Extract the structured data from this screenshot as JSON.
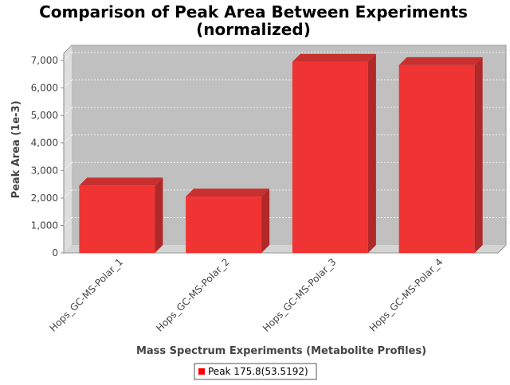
{
  "chart_data": {
    "type": "bar",
    "title": "Comparison of Peak Area Between Experiments",
    "subtitle": "(normalized)",
    "xlabel": "Mass Spectrum Experiments (Metabolite Profiles)",
    "ylabel": "Peak Area (1e-3)",
    "categories": [
      "Hops_GC-MS-Polar_1",
      "Hops_GC-MS-Polar_2",
      "Hops_GC-MS-Polar_3",
      "Hops_GC-MS-Polar_4"
    ],
    "series": [
      {
        "name": "Peak 175.8(53.5192)",
        "values": [
          2450,
          2050,
          6950,
          6830
        ]
      }
    ],
    "ylim": [
      0,
      7000
    ],
    "yticks": [
      0,
      1000,
      2000,
      3000,
      4000,
      5000,
      6000,
      7000
    ],
    "ytick_labels": [
      "0",
      "1,000",
      "2,000",
      "3,000",
      "4,000",
      "5,000",
      "6,000",
      "7,000"
    ],
    "grid": true,
    "legend_position": "bottom-center",
    "colors": {
      "bar": "#f03333",
      "bar_side": "#b02828",
      "bar_top": "#c83030",
      "plot_bg": "#c0c0c0",
      "wall": "#dedede",
      "floor": "#d4d4d4"
    }
  }
}
